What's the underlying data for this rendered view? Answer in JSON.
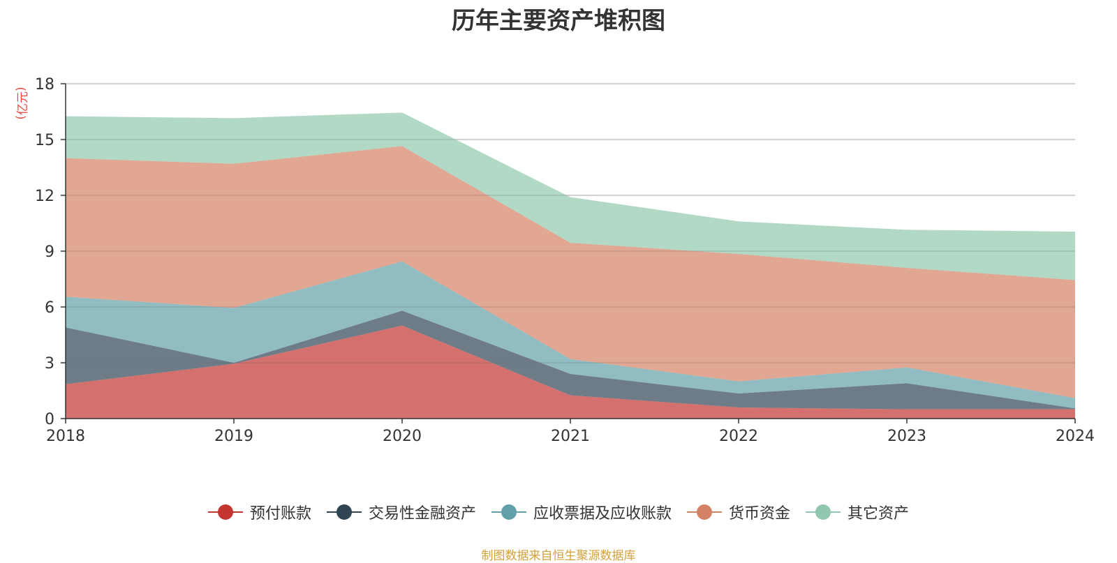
{
  "chart_data": {
    "type": "area",
    "stacked": true,
    "title": "历年主要资产堆积图",
    "unit_label": "亿元",
    "x": [
      "2018",
      "2019",
      "2020",
      "2021",
      "2022",
      "2023",
      "2024"
    ],
    "ylim": [
      0,
      18
    ],
    "yticks": [
      0,
      3,
      6,
      9,
      12,
      15,
      18
    ],
    "grid": true,
    "legend_position": "bottom",
    "series": [
      {
        "name": "预付账款",
        "color": "#c23531",
        "values": [
          1.85,
          2.95,
          5.0,
          1.25,
          0.6,
          0.5,
          0.5
        ]
      },
      {
        "name": "交易性金融资产",
        "color": "#2f4554",
        "values": [
          3.05,
          0.05,
          0.8,
          1.15,
          0.75,
          1.4,
          0.05
        ]
      },
      {
        "name": "应收票据及应收账款",
        "color": "#61a0a8",
        "values": [
          1.65,
          2.95,
          2.65,
          0.8,
          0.65,
          0.85,
          0.55
        ]
      },
      {
        "name": "货币资金",
        "color": "#d48265",
        "values": [
          7.45,
          7.75,
          6.2,
          6.25,
          6.85,
          5.35,
          6.35
        ]
      },
      {
        "name": "其它资产",
        "color": "#91c7ae",
        "values": [
          2.25,
          2.45,
          1.8,
          2.45,
          1.75,
          2.05,
          2.6
        ]
      }
    ]
  },
  "footer": {
    "source": "制图数据来自恒生聚源数据库"
  }
}
